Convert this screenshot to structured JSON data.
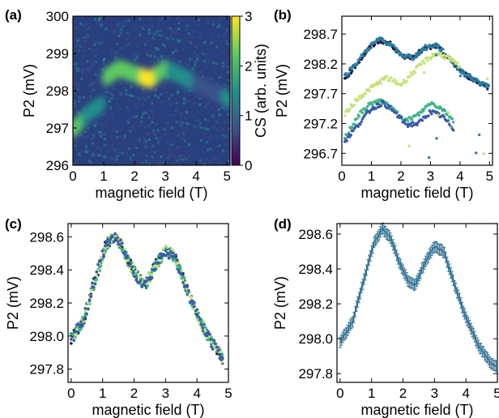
{
  "colors": {
    "viridis": [
      "#440154",
      "#3b528b",
      "#21918c",
      "#5ec962",
      "#fde725"
    ],
    "series_a": "#1b1b4b",
    "series_b": "#2a7fa0",
    "series_c": "#3fb58a",
    "series_d": "#c7e27a",
    "series_e": "#3a5aa8",
    "errorbar": "#2f6f92"
  },
  "chart_data": [
    {
      "panel": "(a)",
      "type": "heatmap",
      "xlabel": "magnetic field (T)",
      "ylabel": "P2 (mV)",
      "xlim": [
        0,
        5.1
      ],
      "ylim": [
        296.0,
        300.0
      ],
      "xticks": [
        "0",
        "1",
        "2",
        "3",
        "4",
        "5"
      ],
      "yticks": [
        "296",
        "297",
        "298",
        "299",
        "300"
      ],
      "colorbar": {
        "label": "CS (arb. units)",
        "ticks": [
          "0",
          "1",
          "2",
          "3"
        ],
        "range": [
          0,
          3
        ]
      },
      "ridge": {
        "x": [
          0.0,
          0.5,
          0.95,
          1.05,
          1.5,
          2.0,
          2.5,
          3.0,
          3.5,
          4.0,
          4.5,
          5.1
        ],
        "y": [
          296.95,
          297.4,
          297.65,
          298.35,
          298.6,
          298.45,
          298.3,
          298.6,
          298.4,
          298.2,
          298.0,
          297.75
        ],
        "intensity": [
          2.0,
          1.8,
          1.6,
          2.2,
          2.6,
          2.4,
          2.9,
          2.0,
          1.3,
          1.1,
          1.0,
          1.2
        ]
      }
    },
    {
      "panel": "(b)",
      "type": "scatter",
      "xlabel": "magnetic field (T)",
      "ylabel": "P2 (mV)",
      "xlim": [
        0,
        5.1
      ],
      "ylim": [
        296.5,
        299.0
      ],
      "xticks": [
        "0",
        "1",
        "2",
        "3",
        "4",
        "5"
      ],
      "yticks": [
        "296.7",
        "297.2",
        "297.7",
        "298.2",
        "298.7"
      ],
      "series": [
        {
          "color": "#1b1b4b",
          "x": [
            0.1,
            0.5,
            1.0,
            1.3,
            1.7,
            2.0,
            2.4,
            2.8,
            3.2,
            3.6,
            4.0,
            4.5,
            5.0
          ],
          "y": [
            297.95,
            298.2,
            298.5,
            298.6,
            298.52,
            298.33,
            298.32,
            298.45,
            298.5,
            298.3,
            298.08,
            297.92,
            297.8
          ]
        },
        {
          "color": "#2a7fa0",
          "x": [
            0.1,
            0.5,
            1.0,
            1.3,
            1.7,
            2.0,
            2.4,
            2.8,
            3.2,
            3.6,
            4.0,
            4.5,
            5.0
          ],
          "y": [
            298.0,
            298.22,
            298.52,
            298.62,
            298.5,
            298.35,
            298.3,
            298.47,
            298.52,
            298.32,
            298.1,
            297.93,
            297.82
          ]
        },
        {
          "color": "#c7e27a",
          "x": [
            0.1,
            0.5,
            1.0,
            1.5,
            2.0,
            2.4,
            2.8,
            3.2,
            3.6,
            4.0
          ],
          "y": [
            297.35,
            297.6,
            297.8,
            297.97,
            297.85,
            298.05,
            298.25,
            298.38,
            298.3,
            298.15
          ]
        },
        {
          "color": "#3fb58a",
          "x": [
            0.1,
            0.5,
            1.0,
            1.4,
            1.8,
            2.2,
            2.6,
            3.0,
            3.4,
            3.8
          ],
          "y": [
            296.95,
            297.3,
            297.55,
            297.57,
            297.4,
            297.25,
            297.35,
            297.55,
            297.45,
            297.25
          ]
        },
        {
          "color": "#3a5aa8",
          "x": [
            0.1,
            0.5,
            1.0,
            1.4,
            1.8,
            2.2,
            2.6,
            3.0,
            3.4,
            3.8
          ],
          "y": [
            296.9,
            297.15,
            297.45,
            297.55,
            297.38,
            297.18,
            297.2,
            297.4,
            297.32,
            297.1
          ]
        }
      ]
    },
    {
      "panel": "(c)",
      "type": "scatter",
      "xlabel": "magnetic field (T)",
      "ylabel": "P2 (mV)",
      "xlim": [
        -0.1,
        5.0
      ],
      "ylim": [
        297.72,
        298.68
      ],
      "xticks": [
        "0",
        "1",
        "2",
        "3",
        "4",
        "5"
      ],
      "yticks": [
        "297.8",
        "298.0",
        "298.2",
        "298.4",
        "298.6"
      ],
      "curve": {
        "x": [
          0.0,
          0.4,
          0.8,
          1.1,
          1.3,
          1.6,
          1.9,
          2.2,
          2.4,
          2.7,
          3.0,
          3.3,
          3.6,
          4.0,
          4.4,
          4.8
        ],
        "y": [
          297.98,
          298.1,
          298.37,
          298.55,
          298.6,
          298.55,
          298.42,
          298.33,
          298.32,
          298.43,
          298.52,
          298.48,
          298.32,
          298.13,
          297.98,
          297.87
        ]
      },
      "series_colors": [
        "#1b1b4b",
        "#2a7fa0",
        "#3fb58a",
        "#c7e27a",
        "#3a5aa8"
      ]
    },
    {
      "panel": "(d)",
      "type": "line",
      "xlabel": "magnetic field (T)",
      "ylabel": "P2 (mV)",
      "xlim": [
        -0.1,
        5.0
      ],
      "ylim": [
        297.75,
        298.66
      ],
      "xticks": [
        "0",
        "1",
        "2",
        "3",
        "4",
        "5"
      ],
      "yticks": [
        "297.8",
        "298.0",
        "298.2",
        "298.4",
        "298.6"
      ],
      "curve": {
        "x": [
          0.0,
          0.4,
          0.8,
          1.1,
          1.35,
          1.6,
          1.9,
          2.2,
          2.4,
          2.7,
          3.0,
          3.3,
          3.6,
          4.0,
          4.4,
          4.8,
          5.0
        ],
        "y": [
          297.98,
          298.1,
          298.37,
          298.56,
          298.63,
          298.58,
          298.43,
          298.32,
          298.31,
          298.44,
          298.53,
          298.5,
          298.33,
          298.12,
          297.96,
          297.86,
          297.84
        ]
      },
      "errorbar": 0.03
    }
  ]
}
